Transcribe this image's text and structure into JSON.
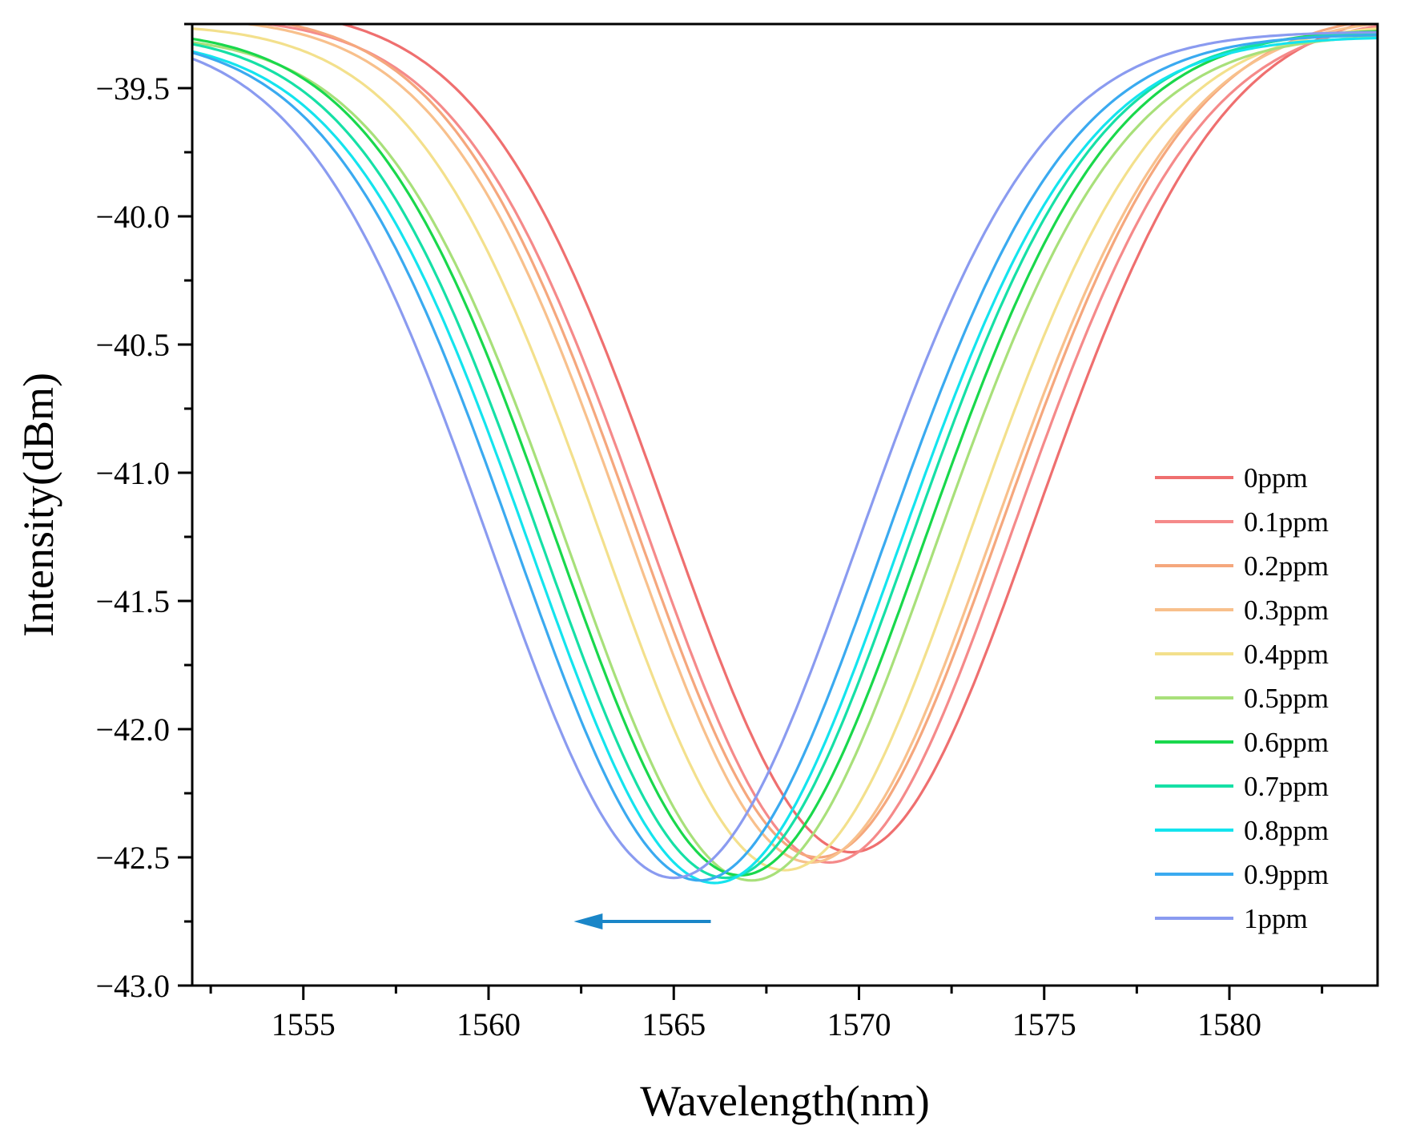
{
  "chart_data": {
    "type": "line",
    "title": "",
    "xlabel": "Wavelength(nm)",
    "ylabel": "Intensity(dBm)",
    "xlim": [
      1552,
      1584
    ],
    "ylim": [
      -43.0,
      -39.25
    ],
    "xticks": [
      1555,
      1560,
      1565,
      1570,
      1575,
      1580
    ],
    "xtick_labels": [
      "1555",
      "1560",
      "1565",
      "1570",
      "1575",
      "1580"
    ],
    "yticks": [
      -39.5,
      -40.0,
      -40.5,
      -41.0,
      -41.5,
      -42.0,
      -42.5,
      -43.0
    ],
    "ytick_labels": [
      "−39.5",
      "−40.0",
      "−40.5",
      "−41.0",
      "−41.5",
      "−42.0",
      "−42.5",
      "−43.0"
    ],
    "grid": false,
    "legend_position": "right",
    "series": [
      {
        "name": "0ppm",
        "color": "#ef6f6f",
        "dip_center": 1569.8,
        "dip_min": -42.48
      },
      {
        "name": "0.1ppm",
        "color": "#f58a8a",
        "dip_center": 1569.2,
        "dip_min": -42.52
      },
      {
        "name": "0.2ppm",
        "color": "#f5a77d",
        "dip_center": 1568.9,
        "dip_min": -42.5
      },
      {
        "name": "0.3ppm",
        "color": "#f8c08c",
        "dip_center": 1568.7,
        "dip_min": -42.52
      },
      {
        "name": "0.4ppm",
        "color": "#f3e08c",
        "dip_center": 1568.0,
        "dip_min": -42.55
      },
      {
        "name": "0.5ppm",
        "color": "#a8e07a",
        "dip_center": 1567.1,
        "dip_min": -42.59
      },
      {
        "name": "0.6ppm",
        "color": "#19d84c",
        "dip_center": 1566.8,
        "dip_min": -42.57
      },
      {
        "name": "0.7ppm",
        "color": "#16e0a6",
        "dip_center": 1566.4,
        "dip_min": -42.58
      },
      {
        "name": "0.8ppm",
        "color": "#14e4ee",
        "dip_center": 1566.1,
        "dip_min": -42.6
      },
      {
        "name": "0.9ppm",
        "color": "#3aaaf0",
        "dip_center": 1565.7,
        "dip_min": -42.59
      },
      {
        "name": "1ppm",
        "color": "#8a9bf0",
        "dip_center": 1565.0,
        "dip_min": -42.58
      }
    ],
    "dip_half_width_nm": 7.0,
    "dip_depth_db": 3.3,
    "annotation_arrow": {
      "from_x": 1566.0,
      "to_x": 1562.3,
      "y": -42.75,
      "color": "#1a86c8",
      "meaning": "blue shift with increasing concentration"
    }
  }
}
